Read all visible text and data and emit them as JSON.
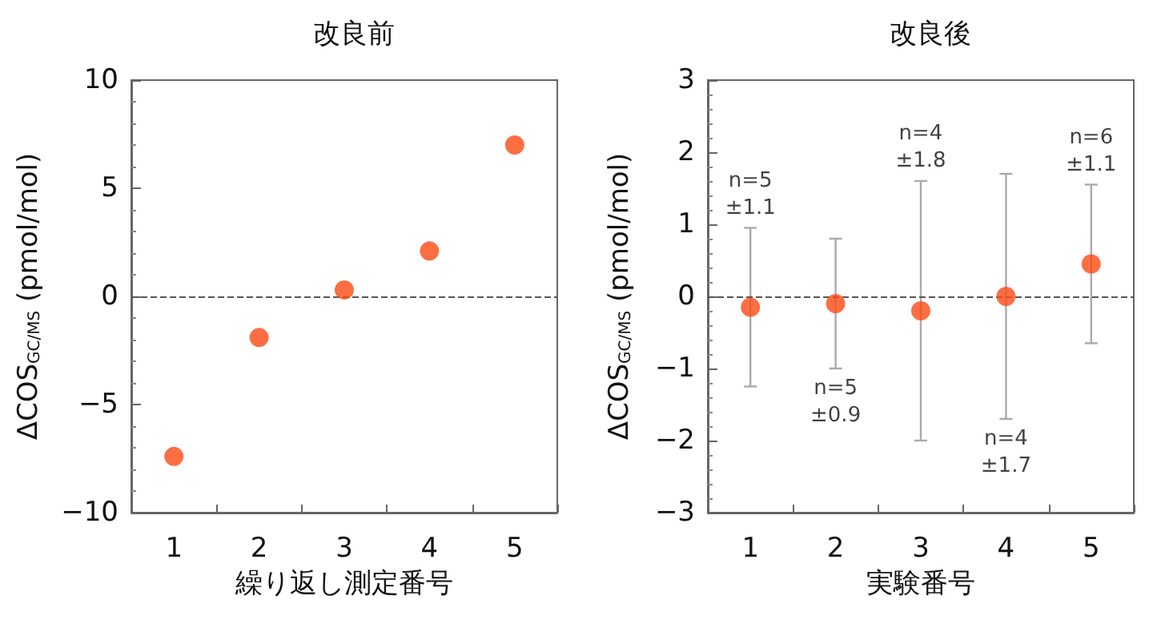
{
  "chart_data": [
    {
      "type": "scatter",
      "title": "改良前",
      "xlabel": "繰り返し測定番号",
      "ylabel": "ΔCOS$_{GC/MS}$ (pmol/mol)",
      "categories": [
        "1",
        "2",
        "3",
        "4",
        "5"
      ],
      "series": [
        {
          "color": "#fc4a14",
          "values": [
            -7.4,
            -1.9,
            0.3,
            2.1,
            7.0
          ]
        }
      ],
      "ylim": [
        -10,
        10
      ],
      "yticks": [
        -10,
        -5,
        0,
        5,
        10
      ],
      "marker": "circle",
      "grid": false,
      "ref_lines": [
        {
          "axis": "y",
          "value": 0,
          "color": "#555555",
          "line_style": "dashed"
        }
      ]
    },
    {
      "type": "scatter",
      "title": "改良後",
      "xlabel": "実験番号",
      "ylabel": "ΔCOS$_{GC/MS}$ (pmol/mol)",
      "categories": [
        "1",
        "2",
        "3",
        "4",
        "5"
      ],
      "series": [
        {
          "color": "#fc4a14",
          "values": [
            -0.15,
            -0.1,
            -0.2,
            0.0,
            0.45
          ],
          "errors": [
            1.1,
            0.9,
            1.8,
            1.7,
            1.1
          ]
        }
      ],
      "ylim": [
        -3,
        3
      ],
      "yticks": [
        -3,
        -2,
        -1,
        0,
        1,
        2,
        3
      ],
      "marker": "circle",
      "grid": false,
      "ref_lines": [
        {
          "axis": "y",
          "value": 0,
          "color": "#555555",
          "line_style": "dashed"
        }
      ],
      "annotations": [
        {
          "text": "n=5\n±1.1",
          "x": "1",
          "y": 0.95
        },
        {
          "text": "n=5\n±0.9",
          "x": "2",
          "y": -1.0
        },
        {
          "text": "n=4\n±1.8",
          "x": "3",
          "y": 1.6
        },
        {
          "text": "n=4\n±1.7",
          "x": "4",
          "y": -1.7
        },
        {
          "text": "n=6\n±1.1",
          "x": "5",
          "y": 1.55
        }
      ]
    }
  ]
}
